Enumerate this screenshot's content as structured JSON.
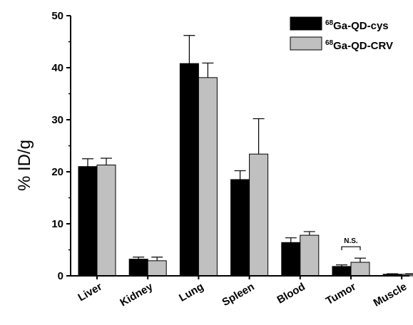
{
  "chart_data": {
    "type": "bar",
    "ylabel": "% ID/g",
    "xlabel": "",
    "ylim": [
      0,
      50
    ],
    "yticks": [
      0,
      10,
      20,
      30,
      40,
      50
    ],
    "categories": [
      "Liver",
      "Kidney",
      "Lung",
      "Spleen",
      "Blood",
      "Tumor",
      "Muscle"
    ],
    "series": [
      {
        "name_sup": "68",
        "name_main": "Ga-QD-cys",
        "color": "#000000",
        "values": [
          21.0,
          3.2,
          40.8,
          18.5,
          6.4,
          1.8,
          0.3
        ],
        "errors": [
          1.5,
          0.4,
          5.4,
          1.7,
          0.9,
          0.3,
          0.1
        ]
      },
      {
        "name_sup": "68",
        "name_main": "Ga-QD-CRV",
        "color": "#c0c0c0",
        "values": [
          21.3,
          2.9,
          38.1,
          23.4,
          7.8,
          2.6,
          0.3
        ],
        "errors": [
          1.3,
          0.7,
          2.8,
          6.8,
          0.7,
          0.8,
          0.1
        ]
      }
    ],
    "annotations": [
      {
        "text": "N.S.",
        "category": "Tumor"
      }
    ],
    "legend_position": "top-right",
    "grid": false
  }
}
